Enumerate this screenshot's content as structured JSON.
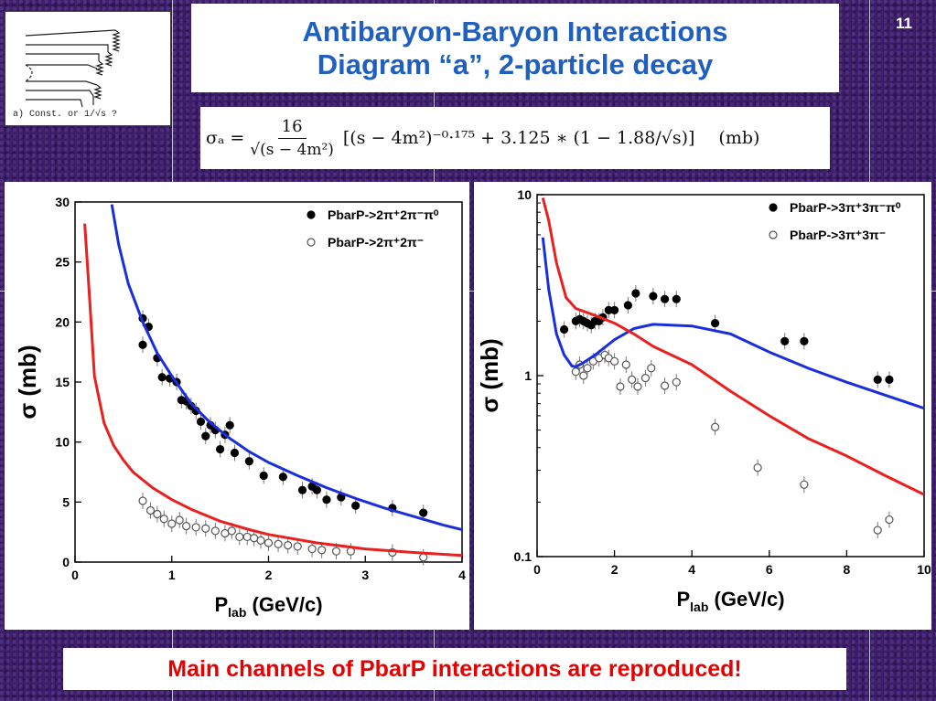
{
  "header": {
    "title_line1": "Antibaryon-Baryon Interactions",
    "title_line2": "Diagram “a”, 2-particle decay",
    "page_number": "11"
  },
  "thumbnail": {
    "caption": "a)  Const. or 1/√s  ?"
  },
  "formula": {
    "lhs": "σₐ =",
    "numerator": "16",
    "denominator": "√(s − 4m²)",
    "body": "[(s − 4m²)⁻⁰·¹⁷⁵ + 3.125 ∗ (1 − 1.88/√s)]",
    "units": "(mb)"
  },
  "footer": {
    "text": "Main channels of PbarP interactions are reproduced!"
  },
  "colors": {
    "blue_curve": "#1a2fdc",
    "red_curve": "#e8211f",
    "title_blue": "#1f5fbf",
    "footer_red": "#e60000"
  },
  "chart_data": [
    {
      "type": "scatter",
      "xlabel": "P_lab (GeV/c)",
      "ylabel": "σ (mb)",
      "xlim": [
        0,
        4
      ],
      "ylim": [
        0,
        30
      ],
      "yscale": "linear",
      "xticks": [
        0,
        1,
        2,
        3,
        4
      ],
      "yticks": [
        0,
        5,
        10,
        15,
        20,
        25,
        30
      ],
      "legend_position": "top-right",
      "series": [
        {
          "name": "PbarP->2π⁺2π⁻π⁰",
          "marker": "filled-circle",
          "x": [
            0.7,
            0.7,
            0.76,
            0.85,
            0.9,
            0.98,
            1.05,
            1.1,
            1.15,
            1.2,
            1.25,
            1.3,
            1.35,
            1.4,
            1.45,
            1.5,
            1.55,
            1.6,
            1.65,
            1.8,
            1.95,
            2.15,
            2.35,
            2.45,
            2.5,
            2.6,
            2.75,
            2.9,
            3.28,
            3.6
          ],
          "y": [
            20.3,
            18.1,
            19.6,
            17.0,
            15.4,
            15.3,
            15.0,
            13.5,
            13.4,
            13.0,
            12.6,
            11.7,
            10.5,
            11.4,
            11.0,
            9.4,
            10.6,
            11.4,
            9.1,
            8.4,
            7.2,
            7.1,
            6.0,
            6.3,
            6.0,
            5.2,
            5.4,
            4.7,
            4.5,
            4.1
          ]
        },
        {
          "name": "PbarP->2π⁺2π⁻",
          "marker": "open-circle",
          "x": [
            0.7,
            0.78,
            0.85,
            0.92,
            1.0,
            1.08,
            1.15,
            1.25,
            1.35,
            1.45,
            1.55,
            1.62,
            1.7,
            1.78,
            1.85,
            1.92,
            2.0,
            2.1,
            2.2,
            2.3,
            2.45,
            2.55,
            2.7,
            2.85,
            3.28,
            3.6
          ],
          "y": [
            5.1,
            4.3,
            4.0,
            3.6,
            3.2,
            3.5,
            3.0,
            2.9,
            2.8,
            2.6,
            2.4,
            2.6,
            2.1,
            2.1,
            2.0,
            1.8,
            1.6,
            1.5,
            1.4,
            1.3,
            1.1,
            1.0,
            0.9,
            0.9,
            0.8,
            0.4
          ]
        },
        {
          "name": "",
          "marker": "line",
          "color": "#1a2fdc",
          "x": [
            0.38,
            0.45,
            0.55,
            0.7,
            0.85,
            1.0,
            1.2,
            1.4,
            1.6,
            1.8,
            2.0,
            2.3,
            2.6,
            2.9,
            3.2,
            3.5,
            3.8,
            4.0
          ],
          "y": [
            29.8,
            26.5,
            23.2,
            20.0,
            17.4,
            15.5,
            13.2,
            11.6,
            10.3,
            9.2,
            8.3,
            7.2,
            6.2,
            5.3,
            4.5,
            3.8,
            3.1,
            2.7
          ]
        },
        {
          "name": "",
          "marker": "line",
          "color": "#e8211f",
          "x": [
            0.1,
            0.15,
            0.2,
            0.3,
            0.4,
            0.5,
            0.6,
            0.8,
            1.0,
            1.2,
            1.5,
            1.8,
            2.0,
            2.5,
            3.0,
            3.5,
            4.0
          ],
          "y": [
            28.2,
            22.0,
            15.5,
            11.6,
            9.7,
            8.5,
            7.5,
            6.2,
            5.2,
            4.4,
            3.4,
            2.7,
            2.3,
            1.6,
            1.1,
            0.8,
            0.55
          ]
        }
      ]
    },
    {
      "type": "scatter",
      "xlabel": "P_lab (GeV/c)",
      "ylabel": "σ (mb)",
      "xlim": [
        0,
        10
      ],
      "ylim": [
        0.1,
        10
      ],
      "yscale": "log",
      "xticks": [
        0,
        2,
        4,
        6,
        8,
        10
      ],
      "yticks": [
        0.1,
        1,
        10
      ],
      "legend_position": "top-right",
      "series": [
        {
          "name": "PbarP->3π⁺3π⁻π⁰",
          "marker": "filled-circle",
          "x": [
            0.7,
            1.0,
            1.1,
            1.2,
            1.3,
            1.4,
            1.5,
            1.6,
            1.7,
            1.85,
            2.0,
            2.35,
            2.55,
            3.0,
            3.3,
            3.6,
            4.6,
            6.4,
            6.9,
            8.8,
            9.1
          ],
          "y": [
            1.8,
            2.0,
            2.05,
            2.0,
            1.95,
            1.9,
            2.0,
            2.0,
            2.1,
            2.3,
            2.3,
            2.45,
            2.85,
            2.75,
            2.65,
            2.65,
            1.95,
            1.55,
            1.55,
            0.95,
            0.95
          ]
        },
        {
          "name": "PbarP->3π⁺3π⁻",
          "marker": "open-circle",
          "x": [
            1.0,
            1.1,
            1.2,
            1.3,
            1.45,
            1.6,
            1.75,
            1.85,
            2.0,
            2.15,
            2.3,
            2.45,
            2.6,
            2.8,
            2.95,
            3.3,
            3.6,
            4.6,
            5.7,
            6.9,
            8.8,
            9.1
          ],
          "y": [
            1.05,
            1.15,
            1.0,
            1.1,
            1.2,
            1.25,
            1.3,
            1.25,
            1.2,
            0.87,
            1.15,
            0.95,
            0.87,
            0.97,
            1.1,
            0.88,
            0.92,
            0.52,
            0.31,
            0.25,
            0.14,
            0.16
          ]
        },
        {
          "name": "",
          "marker": "line",
          "color": "#1a2fdc",
          "x": [
            0.15,
            0.3,
            0.5,
            0.7,
            0.9,
            1.0,
            1.2,
            1.5,
            2.0,
            2.5,
            3.0,
            4.0,
            5.0,
            6.0,
            7.0,
            8.0,
            9.0,
            10.0
          ],
          "y": [
            5.8,
            3.0,
            1.7,
            1.3,
            1.13,
            1.12,
            1.18,
            1.3,
            1.58,
            1.82,
            1.92,
            1.88,
            1.7,
            1.35,
            1.1,
            0.92,
            0.78,
            0.66
          ]
        },
        {
          "name": "",
          "marker": "line",
          "color": "#e8211f",
          "x": [
            0.15,
            0.3,
            0.5,
            0.75,
            1.0,
            1.5,
            2.0,
            2.5,
            3.0,
            4.0,
            5.0,
            6.0,
            7.0,
            8.0,
            9.0,
            10.0
          ],
          "y": [
            9.6,
            7.2,
            4.2,
            2.7,
            2.35,
            2.15,
            1.95,
            1.7,
            1.45,
            1.15,
            0.82,
            0.6,
            0.45,
            0.36,
            0.28,
            0.22
          ]
        }
      ]
    }
  ]
}
